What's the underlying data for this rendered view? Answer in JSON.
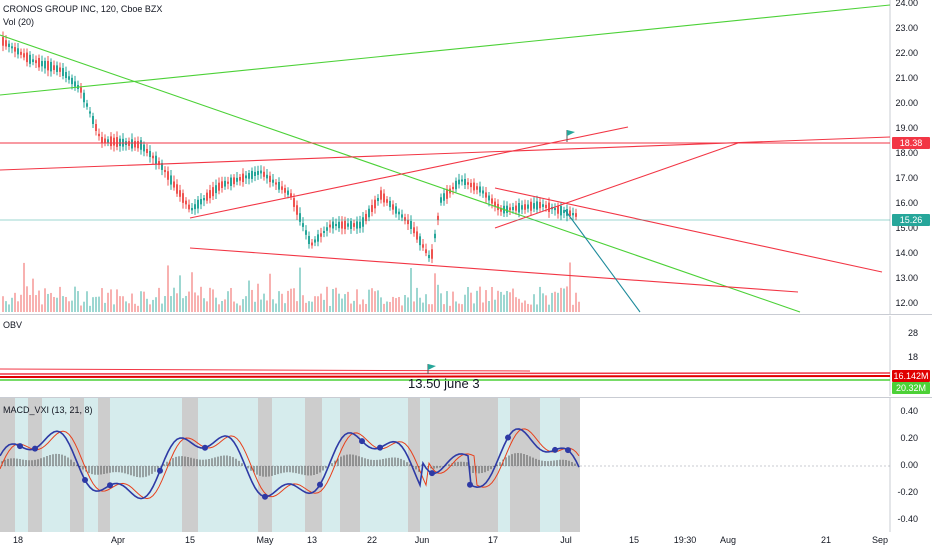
{
  "price_pane": {
    "title": "CRONOS GROUP INC, 120, Cboe BZX",
    "volume_label": "Vol (20)",
    "axis_ticks": [
      "24.00",
      "23.00",
      "22.00",
      "21.00",
      "20.00",
      "19.00",
      "18.00",
      "17.00",
      "16.00",
      "15.00",
      "14.00",
      "13.00",
      "12.00"
    ],
    "last_price_tag": "15.26",
    "last_price_color": "#26a69a",
    "hline_tag": "18.38",
    "hline_color": "#f23645"
  },
  "obv_pane": {
    "label": "OBV",
    "axis_ticks": [
      "28",
      "18"
    ],
    "red_tag": "16.142M",
    "green_tag": "20.32M",
    "annotation": "13.50 june 3"
  },
  "macd_pane": {
    "label": "MACD_VXI (13, 21, 8)",
    "axis_ticks": [
      "0.40",
      "0.20",
      "0.00",
      "-0.20",
      "-0.40"
    ]
  },
  "time_axis": {
    "labels": [
      "18",
      "Apr",
      "15",
      "May",
      "13",
      "22",
      "Jun",
      "17",
      "Jul",
      "15",
      "19:30",
      "Aug",
      "21",
      "Sep"
    ]
  },
  "colors": {
    "up": "#26a69a",
    "down": "#ef5350",
    "trend_green": "#4cd137",
    "trend_red": "#f23645",
    "trend_teal": "#1e8b9b",
    "macd_line": "#2e3aa5",
    "signal_line": "#e8401c",
    "shade_teal": "#cfe9ea",
    "shade_gray": "#c4c4c4"
  }
}
